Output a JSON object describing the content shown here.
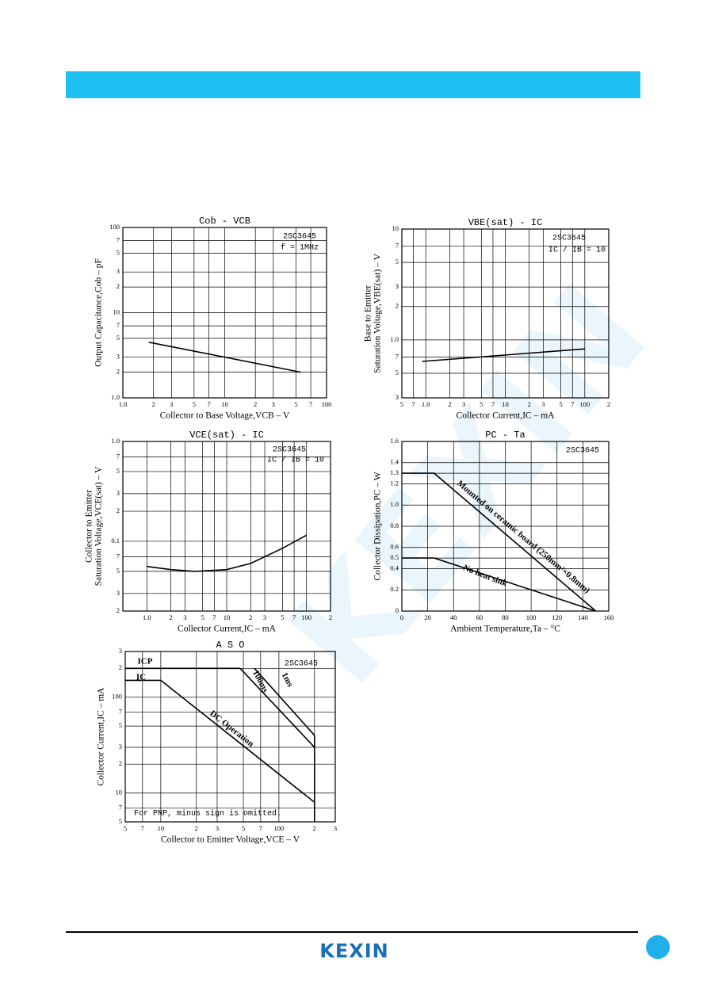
{
  "watermark": "KEXIN",
  "footer": {
    "logo": "KEXIN"
  },
  "chart_data": [
    {
      "type": "line",
      "title": "Cob - VCB",
      "xlabel": "Collector to Base Voltage,VCB – V",
      "ylabel": [
        "Output Capacitance,Cob – pF"
      ],
      "annotations": [
        "2SC3645",
        "f = 1MHz"
      ],
      "xscale": "log",
      "yscale": "log",
      "grid": true,
      "xlim": [
        1,
        100
      ],
      "ylim": [
        1,
        100
      ],
      "xticks": [
        {
          "value": 1,
          "label": "1.0"
        },
        2,
        3,
        5,
        7,
        10,
        {
          "value": 20,
          "label": "2"
        },
        {
          "value": 30,
          "label": "3"
        },
        {
          "value": 50,
          "label": "5"
        },
        {
          "value": 70,
          "label": "7"
        },
        100
      ],
      "yticks": [
        {
          "value": 1,
          "label": "1.0"
        },
        2,
        3,
        5,
        7,
        10,
        {
          "value": 20,
          "label": "2"
        },
        {
          "value": 30,
          "label": "3"
        },
        {
          "value": 50,
          "label": "5"
        },
        {
          "value": 70,
          "label": "7"
        },
        100
      ],
      "series": [
        {
          "color": "#000000",
          "x": [
            1.8,
            56
          ],
          "values": [
            4.5,
            2
          ]
        }
      ]
    },
    {
      "type": "line",
      "title": "VBE(sat) - IC",
      "xlabel": "Collector Current,IC – mA",
      "ylabel": [
        "Base to Emitter",
        "Saturation Voltage,VBE(sat) – V"
      ],
      "annotations": [
        "2SC3645",
        "IC / IB = 10"
      ],
      "xscale": "log",
      "yscale": "log",
      "grid": true,
      "xlim": [
        0.5,
        200
      ],
      "ylim": [
        0.3,
        10
      ],
      "xticks": [
        {
          "value": 0.5,
          "label": "5"
        },
        {
          "value": 0.7,
          "label": "7"
        },
        {
          "value": 1,
          "label": "1.0"
        },
        2,
        3,
        5,
        7,
        10,
        {
          "value": 20,
          "label": "2"
        },
        {
          "value": 30,
          "label": "3"
        },
        {
          "value": 50,
          "label": "5"
        },
        {
          "value": 70,
          "label": "7"
        },
        100,
        {
          "value": 200,
          "label": "2"
        }
      ],
      "yticks": [
        {
          "value": 0.3,
          "label": "3"
        },
        {
          "value": 0.5,
          "label": "5"
        },
        {
          "value": 0.7,
          "label": "7"
        },
        {
          "value": 1,
          "label": "1.0"
        },
        2,
        3,
        5,
        7,
        10
      ],
      "series": [
        {
          "color": "#000000",
          "x": [
            0.9,
            100
          ],
          "values": [
            0.64,
            0.83
          ]
        }
      ]
    },
    {
      "type": "line",
      "title": "VCE(sat) - IC",
      "xlabel": "Collector Current,IC – mA",
      "ylabel": [
        "Collector to Emitter",
        "Saturation Voltage,VCE(sat) – V"
      ],
      "annotations": [
        "2SC3645",
        "IC / IB = 10"
      ],
      "xscale": "log",
      "yscale": "log",
      "grid": true,
      "xlim": [
        0.5,
        200
      ],
      "ylim": [
        0.02,
        1
      ],
      "xticks": [
        {
          "value": 1,
          "label": "1.0"
        },
        2,
        3,
        5,
        7,
        10,
        {
          "value": 20,
          "label": "2"
        },
        {
          "value": 30,
          "label": "3"
        },
        {
          "value": 50,
          "label": "5"
        },
        {
          "value": 70,
          "label": "7"
        },
        100,
        {
          "value": 200,
          "label": "2"
        }
      ],
      "yticks": [
        {
          "value": 0.02,
          "label": "2"
        },
        {
          "value": 0.03,
          "label": "3"
        },
        {
          "value": 0.05,
          "label": "5"
        },
        {
          "value": 0.07,
          "label": "7"
        },
        0.1,
        {
          "value": 0.2,
          "label": "2"
        },
        {
          "value": 0.3,
          "label": "3"
        },
        {
          "value": 0.5,
          "label": "5"
        },
        {
          "value": 0.7,
          "label": "7"
        },
        {
          "value": 1,
          "label": "1.0"
        }
      ],
      "series": [
        {
          "color": "#000000",
          "x": [
            1,
            2,
            4,
            10,
            20,
            50,
            100
          ],
          "values": [
            0.056,
            0.052,
            0.05,
            0.052,
            0.06,
            0.085,
            0.115
          ]
        }
      ]
    },
    {
      "type": "line",
      "title": "PC - Ta",
      "xlabel": "Ambient Temperature,Ta – °C",
      "ylabel": [
        "Collector Dissipation,PC – W"
      ],
      "annotations": [
        "2SC3645"
      ],
      "xscale": "linear",
      "yscale": "linear",
      "grid": true,
      "xlim": [
        0,
        160
      ],
      "ylim": [
        0,
        1.6
      ],
      "xticks": [
        0,
        20,
        40,
        60,
        80,
        100,
        120,
        140,
        160
      ],
      "yticks": [
        0,
        0.2,
        0.4,
        0.5,
        0.6,
        0.8,
        {
          "value": 1,
          "label": "1.0"
        },
        1.2,
        1.3,
        1.4,
        1.6
      ],
      "series": [
        {
          "name": "Mounted on ceramic board (250mm²×0.8mm)",
          "color": "#000000",
          "x": [
            0,
            25,
            150
          ],
          "values": [
            1.3,
            1.3,
            0
          ]
        },
        {
          "name": "No heat sink",
          "color": "#000000",
          "x": [
            0,
            25,
            150
          ],
          "values": [
            0.5,
            0.5,
            0
          ]
        }
      ]
    },
    {
      "type": "line",
      "title": "A S O",
      "xlabel": "Collector to Emitter Voltage,VCE – V",
      "ylabel": [
        "Collector Current,IC – mA"
      ],
      "annotations": [
        "2SC3645",
        "For PNP, minus sign is omitted."
      ],
      "xscale": "log",
      "yscale": "log",
      "grid": true,
      "xlim": [
        5,
        300
      ],
      "ylim": [
        5,
        300
      ],
      "xticks": [
        5,
        7,
        10,
        {
          "value": 20,
          "label": "2"
        },
        {
          "value": 30,
          "label": "3"
        },
        {
          "value": 50,
          "label": "5"
        },
        {
          "value": 70,
          "label": "7"
        },
        100,
        {
          "value": 200,
          "label": "2"
        },
        {
          "value": 300,
          "label": "3"
        }
      ],
      "yticks": [
        5,
        7,
        10,
        {
          "value": 20,
          "label": "2"
        },
        {
          "value": 30,
          "label": "3"
        },
        {
          "value": 50,
          "label": "5"
        },
        {
          "value": 70,
          "label": "7"
        },
        100,
        {
          "value": 200,
          "label": "2"
        },
        {
          "value": 300,
          "label": "3"
        }
      ],
      "series": [
        {
          "name": "ICP",
          "color": "#000000",
          "x": [
            5,
            47
          ],
          "values": [
            200,
            200
          ]
        },
        {
          "name": "IC",
          "color": "#000000",
          "x": [
            5,
            10
          ],
          "values": [
            150,
            150
          ]
        },
        {
          "name": "DC Operation",
          "color": "#000000",
          "x": [
            10,
            200
          ],
          "values": [
            150,
            8
          ]
        },
        {
          "name": "100ms",
          "color": "#000000",
          "x": [
            47,
            200
          ],
          "values": [
            200,
            30
          ]
        },
        {
          "name": "1ms",
          "color": "#000000",
          "x": [
            62,
            200
          ],
          "values": [
            200,
            40
          ]
        },
        {
          "color": "#000000",
          "x": [
            200,
            200
          ],
          "values": [
            40,
            5
          ]
        }
      ]
    }
  ]
}
